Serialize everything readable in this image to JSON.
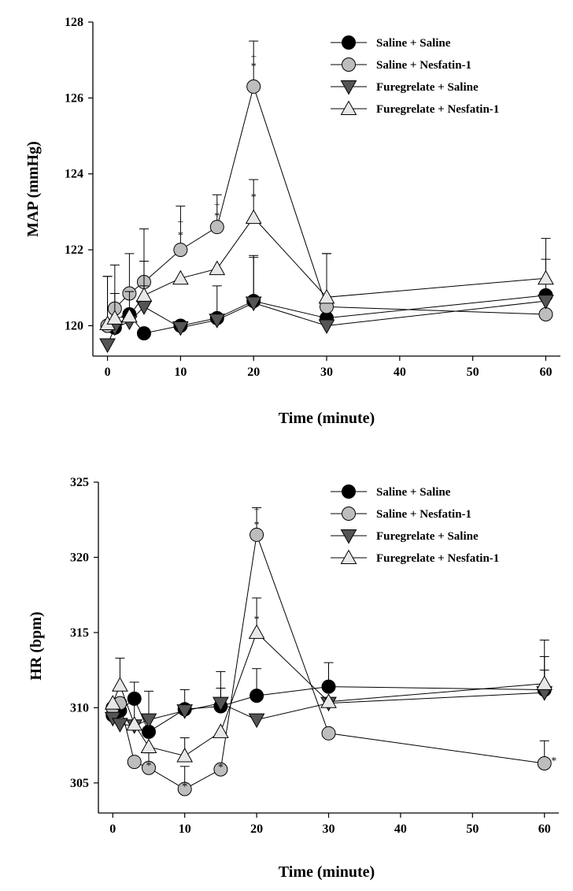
{
  "chart_data": [
    {
      "type": "line",
      "xlabel": "Time (minute)",
      "ylabel": "MAP (mmHg)",
      "xlim": [
        -2,
        62
      ],
      "ylim": [
        119.2,
        128
      ],
      "xticks": [
        0,
        10,
        20,
        30,
        40,
        50,
        60
      ],
      "yticks": [
        120,
        122,
        124,
        126,
        128
      ],
      "legend_position": "top-right",
      "series": [
        {
          "name": "Saline + Saline",
          "marker": "circle",
          "fill": "#000000",
          "x": [
            0,
            1,
            3,
            5,
            10,
            15,
            20,
            30,
            60
          ],
          "y": [
            120.0,
            119.95,
            120.3,
            119.8,
            120.0,
            120.2,
            120.65,
            120.2,
            120.8
          ],
          "err": [
            0,
            0,
            0,
            0,
            0,
            0,
            1.2,
            1.7,
            0
          ]
        },
        {
          "name": "Saline + Nesfatin-1",
          "marker": "circle",
          "fill": "#bdbdbd",
          "x": [
            0,
            1,
            3,
            5,
            10,
            15,
            20,
            30,
            60
          ],
          "y": [
            120.0,
            120.45,
            120.85,
            121.15,
            122.0,
            122.6,
            126.3,
            120.5,
            120.3
          ],
          "err": [
            1.3,
            1.15,
            1.05,
            1.4,
            1.15,
            0.85,
            1.2,
            1.4,
            0
          ]
        },
        {
          "name": "Furegrelate + Saline",
          "marker": "triangle-down",
          "fill": "#555555",
          "x": [
            0,
            1,
            3,
            5,
            10,
            15,
            20,
            30,
            60
          ],
          "y": [
            119.5,
            119.95,
            120.1,
            120.5,
            119.95,
            120.15,
            120.6,
            120.0,
            120.65
          ],
          "err": [
            0,
            0.9,
            0.8,
            0.55,
            0,
            0.9,
            1.2,
            0,
            1.1
          ]
        },
        {
          "name": "Furegrelate + Nesfatin-1",
          "marker": "triangle-up",
          "fill": "#e8e8e8",
          "x": [
            0,
            1,
            3,
            5,
            10,
            15,
            20,
            30,
            60
          ],
          "y": [
            120.05,
            120.2,
            120.25,
            120.8,
            121.25,
            121.5,
            122.85,
            120.75,
            121.25
          ],
          "err": [
            1.25,
            0,
            0,
            0.9,
            0,
            0,
            1.0,
            1.15,
            1.05
          ]
        }
      ],
      "annotations": [
        {
          "text": "+",
          "x": 20,
          "y": 127.1
        },
        {
          "text": "*",
          "x": 20,
          "y": 126.85
        },
        {
          "text": "+",
          "x": 10,
          "y": 122.75
        },
        {
          "text": "*",
          "x": 10,
          "y": 122.4
        },
        {
          "text": "+",
          "x": 15,
          "y": 123.2
        },
        {
          "text": "*",
          "x": 15,
          "y": 122.9
        },
        {
          "text": "*",
          "x": 20,
          "y": 123.4
        }
      ]
    },
    {
      "type": "line",
      "xlabel": "Time (minute)",
      "ylabel": "HR (bpm)",
      "xlim": [
        -2,
        62
      ],
      "ylim": [
        303,
        325
      ],
      "xticks": [
        0,
        10,
        20,
        30,
        40,
        50,
        60
      ],
      "yticks": [
        305,
        310,
        315,
        320,
        325
      ],
      "legend_position": "top-right",
      "series": [
        {
          "name": "Saline + Saline",
          "marker": "circle",
          "fill": "#000000",
          "x": [
            0,
            1,
            3,
            5,
            10,
            15,
            20,
            30,
            60
          ],
          "y": [
            309.5,
            309.8,
            310.6,
            308.4,
            309.9,
            310.1,
            310.8,
            311.4,
            311.2
          ],
          "err": [
            0,
            0,
            1.1,
            1.1,
            1.3,
            1.2,
            1.8,
            1.6,
            1.3
          ]
        },
        {
          "name": "Saline + Nesfatin-1",
          "marker": "circle",
          "fill": "#bdbdbd",
          "x": [
            0,
            1,
            3,
            5,
            10,
            15,
            20,
            30,
            60
          ],
          "y": [
            310.0,
            310.3,
            306.4,
            306.0,
            304.6,
            305.9,
            321.5,
            308.3,
            306.3
          ],
          "err": [
            0,
            0,
            0,
            1.0,
            1.5,
            0,
            1.8,
            0,
            1.5
          ]
        },
        {
          "name": "Furegrelate + Saline",
          "marker": "triangle-down",
          "fill": "#555555",
          "x": [
            0,
            1,
            3,
            5,
            10,
            15,
            20,
            30,
            60
          ],
          "y": [
            309.3,
            308.9,
            308.8,
            309.2,
            309.8,
            310.3,
            309.2,
            310.3,
            311.0
          ],
          "err": [
            0,
            0,
            0,
            1.9,
            0,
            2.1,
            0,
            0,
            2.4
          ]
        },
        {
          "name": "Furegrelate + Nesfatin-1",
          "marker": "triangle-up",
          "fill": "#e8e8e8",
          "x": [
            0,
            1,
            3,
            5,
            10,
            15,
            20,
            30,
            60
          ],
          "y": [
            310.3,
            311.5,
            308.9,
            307.4,
            306.8,
            308.4,
            315.0,
            310.4,
            311.6
          ],
          "err": [
            0,
            1.8,
            2.0,
            1.0,
            1.2,
            0,
            2.3,
            0,
            2.9
          ]
        }
      ],
      "annotations": [
        {
          "text": "+",
          "x": 20,
          "y": 323.2
        },
        {
          "text": "*",
          "x": 20,
          "y": 322.2
        },
        {
          "text": "*",
          "x": 20,
          "y": 315.9
        },
        {
          "text": "*",
          "x": 5,
          "y": 306.2
        },
        {
          "text": "*",
          "x": 10,
          "y": 304.8
        },
        {
          "text": "*",
          "x": 15,
          "y": 306.1
        },
        {
          "text": "*",
          "x": 60,
          "y": 306.5
        }
      ]
    }
  ]
}
